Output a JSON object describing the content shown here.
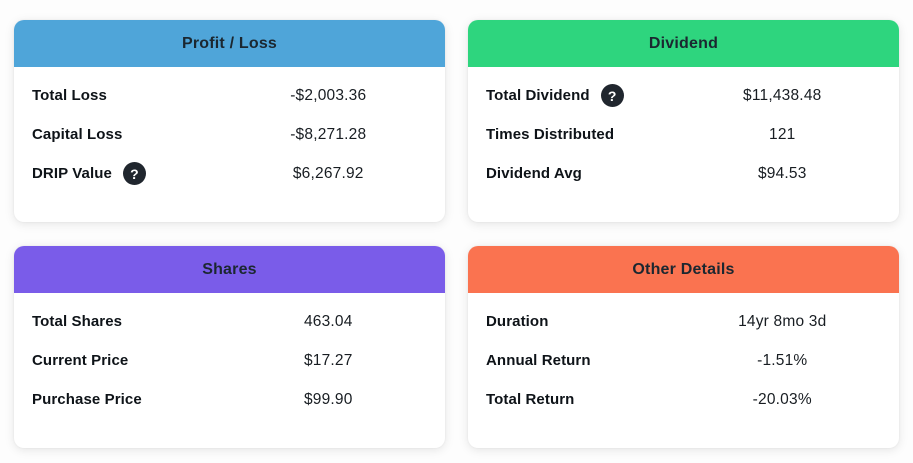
{
  "colors": {
    "page_background": "#fdfdfd",
    "card_background": "#ffffff",
    "header_text": "#1b2730",
    "label_text": "#0e1318",
    "value_text": "#181d22",
    "help_icon_bg": "#20262e",
    "help_icon_glyph_color": "#ffffff"
  },
  "icons": {
    "help_glyph": "?"
  },
  "cards": [
    {
      "id": "profit-loss",
      "title": "Profit / Loss",
      "header_color": "#4FA5D9",
      "rows": [
        {
          "label": "Total Loss",
          "value": "-$2,003.36",
          "has_help": false
        },
        {
          "label": "Capital Loss",
          "value": "-$8,271.28",
          "has_help": false
        },
        {
          "label": "DRIP Value",
          "value": "$6,267.92",
          "has_help": true
        }
      ]
    },
    {
      "id": "dividend",
      "title": "Dividend",
      "header_color": "#2ED57E",
      "rows": [
        {
          "label": "Total Dividend",
          "value": "$11,438.48",
          "has_help": true
        },
        {
          "label": "Times Distributed",
          "value": "121",
          "has_help": false
        },
        {
          "label": "Dividend Avg",
          "value": "$94.53",
          "has_help": false
        }
      ]
    },
    {
      "id": "shares",
      "title": "Shares",
      "header_color": "#7A5CE9",
      "rows": [
        {
          "label": "Total Shares",
          "value": "463.04",
          "has_help": false
        },
        {
          "label": "Current Price",
          "value": "$17.27",
          "has_help": false
        },
        {
          "label": "Purchase Price",
          "value": "$99.90",
          "has_help": false
        }
      ]
    },
    {
      "id": "other-details",
      "title": "Other Details",
      "header_color": "#FA7350",
      "rows": [
        {
          "label": "Duration",
          "value": "14yr 8mo 3d",
          "has_help": false
        },
        {
          "label": "Annual Return",
          "value": "-1.51%",
          "has_help": false
        },
        {
          "label": "Total Return",
          "value": "-20.03%",
          "has_help": false
        }
      ]
    }
  ]
}
